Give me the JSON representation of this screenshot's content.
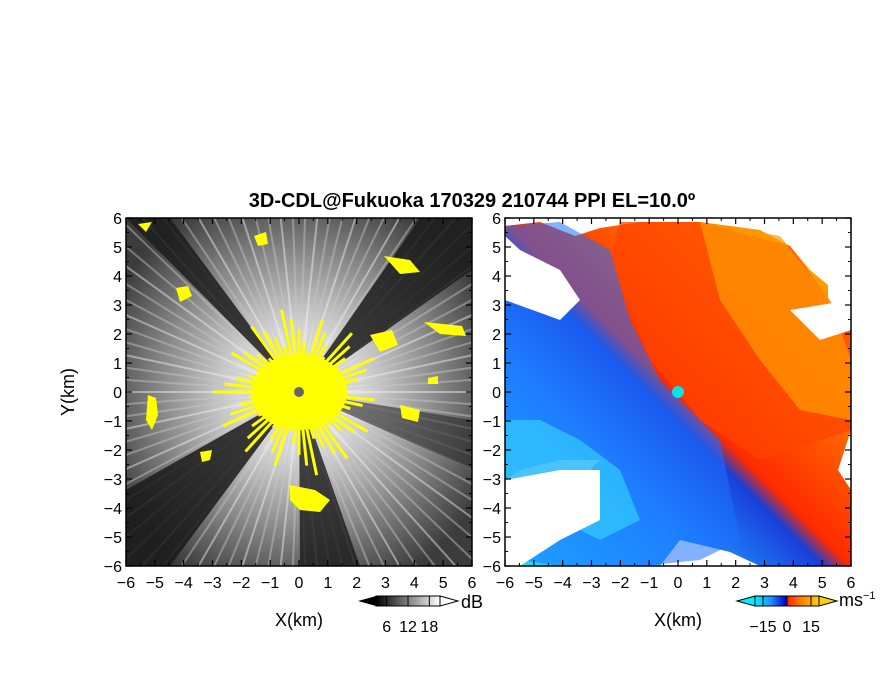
{
  "chart_data": {
    "type": "heatmap",
    "title": "3D-CDL@Fukuoka 170329 210744 PPI EL=10.0º",
    "panels": [
      {
        "name": "reflectivity",
        "xlabel": "X(km)",
        "ylabel": "Y(km)",
        "xlim": [
          -6,
          6
        ],
        "ylim": [
          -6,
          6
        ],
        "xticks": [
          -6,
          -5,
          -4,
          -3,
          -2,
          -1,
          0,
          1,
          2,
          3,
          4,
          5,
          6
        ],
        "yticks": [
          -6,
          -5,
          -4,
          -3,
          -2,
          -1,
          0,
          1,
          2,
          3,
          4,
          5,
          6
        ],
        "xtick_labels": [
          "−6",
          "−5",
          "−4",
          "−3",
          "−2",
          "−1",
          "0",
          "1",
          "2",
          "3",
          "4",
          "5",
          "6"
        ],
        "ytick_labels": [
          "−6",
          "−5",
          "−4",
          "−3",
          "−2",
          "−1",
          "0",
          "1",
          "2",
          "3",
          "4",
          "5",
          "6"
        ],
        "colorbar": {
          "unit": "dB",
          "ticks": [
            6,
            12,
            18
          ],
          "tick_labels": [
            "6",
            "12",
            "18"
          ],
          "colors": [
            "#000000",
            "#3a3a3a",
            "#7a7a7a",
            "#bdbdbd",
            "#ffffff"
          ],
          "extends": "both"
        },
        "highlight_color": "#ffff00",
        "center_marker_color": "#666666"
      },
      {
        "name": "doppler-velocity",
        "xlabel": "X(km)",
        "xlim": [
          -6,
          6
        ],
        "ylim": [
          -6,
          6
        ],
        "xticks": [
          -6,
          -5,
          -4,
          -3,
          -2,
          -1,
          0,
          1,
          2,
          3,
          4,
          5,
          6
        ],
        "yticks": [
          -6,
          -5,
          -4,
          -3,
          -2,
          -1,
          0,
          1,
          2,
          3,
          4,
          5,
          6
        ],
        "xtick_labels": [
          "−6",
          "−5",
          "−4",
          "−3",
          "−2",
          "−1",
          "0",
          "1",
          "2",
          "3",
          "4",
          "5",
          "6"
        ],
        "ytick_labels": [
          "−6",
          "−5",
          "−4",
          "−3",
          "−2",
          "−1",
          "0",
          "1",
          "2",
          "3",
          "4",
          "5",
          "6"
        ],
        "colorbar": {
          "unit": "ms",
          "unit_superscript": "−1",
          "ticks": [
            -15,
            0,
            15
          ],
          "tick_labels": [
            "−15",
            "0",
            "15"
          ],
          "colors": [
            "#00eeff",
            "#1e90ff",
            "#0000cd",
            "#ff2a00",
            "#ff8800",
            "#ffd000"
          ],
          "extends": "both"
        },
        "center_marker_color": "#00e5e5"
      }
    ],
    "grid": false
  }
}
